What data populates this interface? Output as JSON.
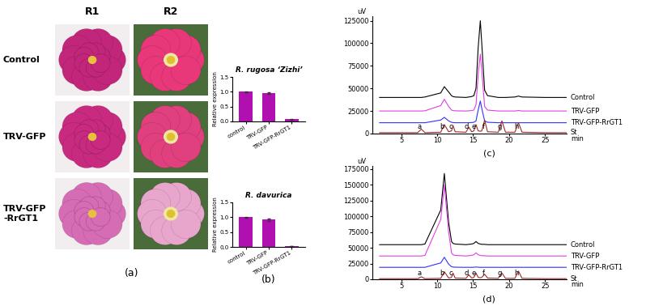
{
  "photos": {
    "panel_label": "(a)",
    "columns": [
      "R1",
      "R2"
    ],
    "rows": [
      "Control",
      "TRV-GFP",
      "TRV-GFP\n-RrGT1"
    ]
  },
  "chart_data": [
    {
      "type": "bar",
      "title": "R. rugosa ‘Zizhi’",
      "y_label": "Relative expression",
      "categories": [
        "control",
        "TRV-GFP",
        "TRV-GFP-RrGT1"
      ],
      "values": [
        1.0,
        0.95,
        0.07
      ],
      "errors": [
        0.01,
        0.03,
        0.01
      ],
      "color": "#b010b0",
      "ylim": [
        0,
        1.5
      ],
      "yticks": [
        {
          "value": 0,
          "label": "0.0"
        },
        0.5,
        {
          "value": 1,
          "label": "1.0"
        },
        1.5
      ]
    },
    {
      "type": "bar",
      "title": "R. davurica",
      "y_label": "Relative expression",
      "panel_label": "(b)",
      "categories": [
        "control",
        "TRV-GFP",
        "TRV-GFP-RrGT1"
      ],
      "values": [
        1.0,
        0.92,
        0.02
      ],
      "errors": [
        0.01,
        0.04,
        0.003
      ],
      "color": "#b010b0",
      "ylim": [
        0,
        1.5
      ],
      "yticks": [
        {
          "value": 0,
          "label": "0.0"
        },
        0.5,
        {
          "value": 1,
          "label": "1.0"
        },
        1.5
      ]
    },
    {
      "type": "line",
      "panel_label": "(c)",
      "y_label": "uV",
      "x_label": "min",
      "x": [
        2,
        7.3,
        7.8,
        8.3,
        10.5,
        11.0,
        11.6,
        12.0,
        12.2,
        12.5,
        14.0,
        14.4,
        14.8,
        15.1,
        15.4,
        15.7,
        16.0,
        16.2,
        16.6,
        17.0,
        18.5,
        19.0,
        19.5,
        20.8,
        21.3,
        21.8,
        25,
        28
      ],
      "series": [
        {
          "name": "Control",
          "color": "#000000",
          "values": [
            40000,
            40000,
            40000,
            40500,
            45000,
            52000,
            46000,
            42000,
            41000,
            40500,
            40000,
            40500,
            41000,
            42000,
            50000,
            95000,
            125000,
            100000,
            48000,
            42000,
            40000,
            40000,
            40000,
            40500,
            41500,
            40500,
            40000,
            40000
          ]
        },
        {
          "name": "TRV-GFP",
          "color": "#e040e0",
          "values": [
            25000,
            25000,
            25000,
            25200,
            31000,
            38000,
            30000,
            26000,
            25500,
            25200,
            25000,
            25200,
            25500,
            26000,
            32000,
            65000,
            88000,
            70000,
            30000,
            26000,
            25000,
            25000,
            25000,
            25000,
            25500,
            25000,
            25000,
            25000
          ]
        },
        {
          "name": "TRV-GFP-RrGT1",
          "color": "#3030ff",
          "values": [
            12000,
            12000,
            12000,
            12000,
            15000,
            18000,
            14000,
            12500,
            12200,
            12000,
            12000,
            12000,
            12200,
            12500,
            14000,
            26000,
            36000,
            28000,
            14000,
            12500,
            12000,
            12000,
            12000,
            12000,
            12000,
            12000,
            12000,
            12000
          ]
        },
        {
          "name": "St",
          "color": "#a02828",
          "values": [
            1000,
            1000,
            5000,
            1000,
            1500,
            10000,
            2000,
            3000,
            9000,
            2000,
            1500,
            7000,
            2000,
            3000,
            10000,
            3000,
            2500,
            3000,
            15000,
            2000,
            1500,
            14000,
            1500,
            1500,
            12000,
            1500,
            1000,
            1000
          ]
        }
      ],
      "annotations": [
        {
          "text": "a",
          "x": 7.8
        },
        {
          "text": "b",
          "x": 11.0
        },
        {
          "text": "c",
          "x": 12.2
        },
        {
          "text": "d",
          "x": 14.4
        },
        {
          "text": "e",
          "x": 15.4
        },
        {
          "text": "f",
          "x": 16.6
        },
        {
          "text": "g",
          "x": 19.0
        },
        {
          "text": "h",
          "x": 21.3
        }
      ],
      "xlim": [
        1,
        28
      ],
      "xticks": [
        5,
        10,
        15,
        20,
        25
      ],
      "ylim": [
        0,
        130000
      ],
      "yticks": [
        0,
        25000,
        50000,
        75000,
        100000,
        125000
      ]
    },
    {
      "type": "line",
      "panel_label": "(d)",
      "y_label": "uV",
      "x_label": "min",
      "x": [
        2,
        7.3,
        7.8,
        8.3,
        10.5,
        11.0,
        11.6,
        12.0,
        12.2,
        12.5,
        14.0,
        14.4,
        14.8,
        15.1,
        15.4,
        15.7,
        16.0,
        16.2,
        16.6,
        17.0,
        18.5,
        19.0,
        19.5,
        20.8,
        21.3,
        21.8,
        25,
        28
      ],
      "series": [
        {
          "name": "Control",
          "color": "#000000",
          "values": [
            55000,
            55000,
            55000,
            56000,
            110000,
            168000,
            90000,
            60000,
            57000,
            56000,
            55000,
            55500,
            56000,
            57000,
            60000,
            57000,
            56000,
            55500,
            55500,
            55000,
            55000,
            55000,
            55000,
            55000,
            55000,
            55000,
            55000,
            55000
          ]
        },
        {
          "name": "TRV-GFP",
          "color": "#e040e0",
          "values": [
            37000,
            37000,
            37000,
            38000,
            95000,
            150000,
            75000,
            42000,
            39000,
            38000,
            37000,
            37500,
            38000,
            39000,
            42000,
            39000,
            38000,
            37500,
            37500,
            37000,
            37000,
            37000,
            37000,
            37000,
            37000,
            37000,
            37000,
            37000
          ]
        },
        {
          "name": "TRV-GFP-RrGT1",
          "color": "#3030ff",
          "values": [
            19000,
            19000,
            19000,
            19000,
            26000,
            35000,
            24000,
            20000,
            19500,
            19200,
            19000,
            19000,
            19000,
            19200,
            19500,
            19200,
            19000,
            19000,
            19000,
            19000,
            19000,
            19000,
            19000,
            19000,
            19000,
            19000,
            19000,
            19000
          ]
        },
        {
          "name": "St",
          "color": "#a02828",
          "values": [
            1000,
            1000,
            4000,
            1000,
            1500,
            12000,
            2000,
            3000,
            10000,
            2000,
            1500,
            7000,
            2000,
            3000,
            10000,
            3000,
            2500,
            3000,
            8000,
            2000,
            1500,
            10000,
            1500,
            1500,
            13000,
            1500,
            1000,
            1000
          ]
        }
      ],
      "annotations": [
        {
          "text": "a",
          "x": 7.8
        },
        {
          "text": "b",
          "x": 11.0
        },
        {
          "text": "c",
          "x": 12.2
        },
        {
          "text": "d",
          "x": 14.4
        },
        {
          "text": "e",
          "x": 15.4
        },
        {
          "text": "f",
          "x": 16.6
        },
        {
          "text": "g",
          "x": 19.0
        },
        {
          "text": "h",
          "x": 21.3
        }
      ],
      "xlim": [
        1,
        28
      ],
      "xticks": [
        5,
        10,
        15,
        20,
        25
      ],
      "ylim": [
        0,
        180000
      ],
      "yticks": [
        0,
        25000,
        50000,
        75000,
        100000,
        125000,
        150000,
        175000
      ]
    }
  ]
}
